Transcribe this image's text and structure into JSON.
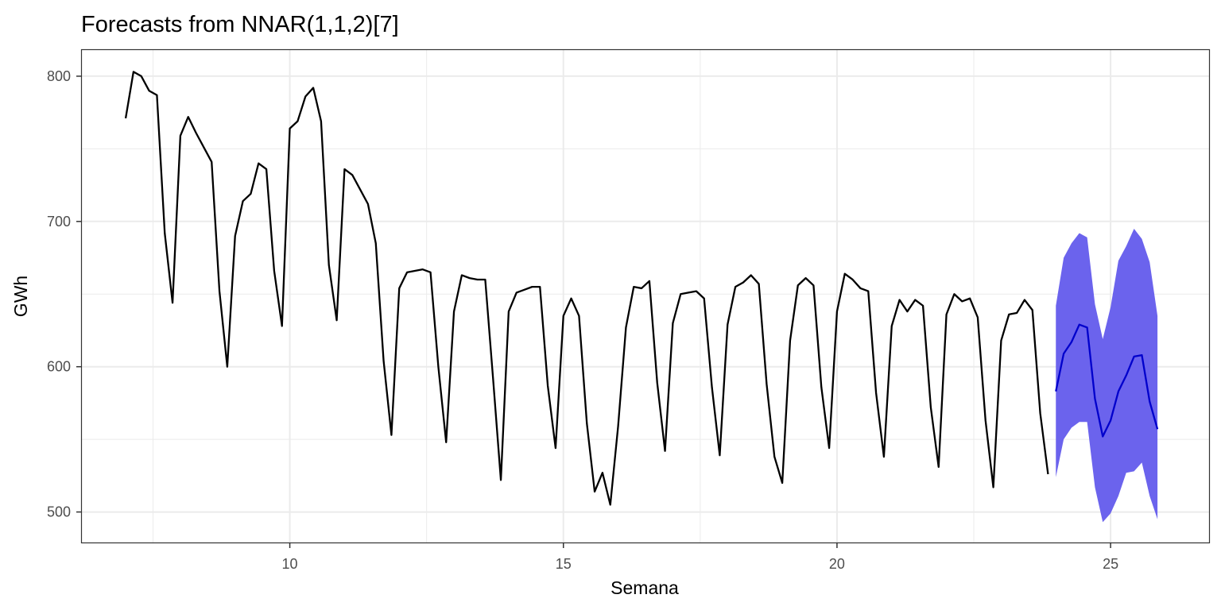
{
  "chart_data": {
    "type": "line",
    "title": "Forecasts from NNAR(1,1,2)[7]",
    "xlabel": "Semana",
    "ylabel": "GWh",
    "xlim": [
      6.2,
      26.8
    ],
    "ylim": [
      479,
      818
    ],
    "x_ticks": [
      10,
      15,
      20,
      25
    ],
    "x_tick_labels": [
      "10",
      "15",
      "20",
      "25"
    ],
    "x_minor_ticks": [
      7.5,
      12.5,
      17.5,
      22.5
    ],
    "y_ticks": [
      500,
      600,
      700,
      800
    ],
    "y_tick_labels": [
      "500",
      "600",
      "700",
      "800"
    ],
    "y_minor_ticks": [
      550,
      650,
      750
    ],
    "grid": true,
    "series": [
      {
        "color": "#000000",
        "x_start": 7.0,
        "x_step": 0.142857,
        "values": [
          771,
          803,
          800,
          790,
          787,
          692,
          644,
          759,
          772,
          761,
          751,
          741,
          652,
          600,
          690,
          714,
          719,
          740,
          736,
          666,
          628,
          764,
          769,
          786,
          792,
          769,
          670,
          632,
          736,
          732,
          722,
          712,
          685,
          604,
          553,
          654,
          665,
          666,
          667,
          665,
          600,
          548,
          638,
          663,
          661,
          660,
          660,
          592,
          522,
          638,
          651,
          653,
          655,
          655,
          587,
          544,
          635,
          647,
          635,
          561,
          514,
          527,
          505,
          559,
          627,
          655,
          654,
          659,
          589,
          542,
          630,
          650,
          651,
          652,
          647,
          586,
          539,
          629,
          655,
          658,
          663,
          657,
          588,
          538,
          520,
          618,
          656,
          661,
          656,
          586,
          544,
          638,
          664,
          660,
          654,
          652,
          582,
          538,
          628,
          646,
          638,
          646,
          642,
          572,
          531,
          636,
          650,
          645,
          647,
          634,
          563,
          517,
          618,
          636,
          637,
          646,
          639,
          568,
          526
        ]
      },
      {
        "color": "#0000cc",
        "x_start": 24.0,
        "x_step": 0.142857,
        "values": [
          583,
          609,
          617,
          629,
          627,
          578,
          552,
          563,
          583,
          594,
          607,
          608,
          576,
          557
        ]
      }
    ],
    "band": {
      "color": "#6b63ed",
      "x_start": 24.0,
      "x_step": 0.142857,
      "upper": [
        642,
        675,
        685,
        692,
        689,
        643,
        619,
        641,
        673,
        683,
        695,
        688,
        672,
        635
      ],
      "lower": [
        524,
        550,
        558,
        562,
        562,
        517,
        493,
        499,
        511,
        527,
        528,
        534,
        511,
        495
      ]
    }
  }
}
